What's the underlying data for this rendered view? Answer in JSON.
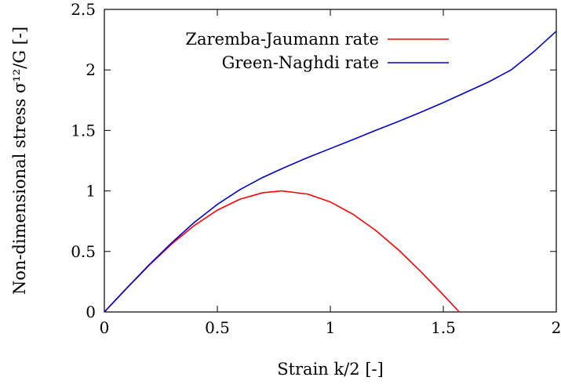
{
  "chart_data": {
    "type": "line",
    "title": "",
    "xlabel": "Strain k/2 [-]",
    "ylabel": "Non-dimensional stress σ¹²/G [-]",
    "xlim": [
      0,
      2
    ],
    "ylim": [
      0,
      2.5
    ],
    "x_ticks": [
      "0",
      "0.5",
      "1",
      "1.5",
      "2"
    ],
    "y_ticks": [
      "0",
      "0.5",
      "1",
      "1.5",
      "2",
      "2.5"
    ],
    "x_tick_values": [
      0,
      0.5,
      1,
      1.5,
      2
    ],
    "y_tick_values": [
      0,
      0.5,
      1,
      1.5,
      2,
      2.5
    ],
    "grid": false,
    "legend_position": "top-right",
    "series": [
      {
        "name": "Zaremba-Jaumann rate",
        "color": "#ff0000",
        "x": [
          0,
          0.1,
          0.2,
          0.3,
          0.4,
          0.5,
          0.6,
          0.7,
          0.785,
          0.9,
          1.0,
          1.1,
          1.2,
          1.3,
          1.4,
          1.5,
          1.571
        ],
        "y": [
          0,
          0.198,
          0.389,
          0.565,
          0.717,
          0.841,
          0.932,
          0.985,
          1.0,
          0.974,
          0.909,
          0.808,
          0.675,
          0.516,
          0.335,
          0.141,
          0
        ]
      },
      {
        "name": "Green-Naghdi rate",
        "color": "#0000cc",
        "x": [
          0,
          0.1,
          0.2,
          0.3,
          0.4,
          0.5,
          0.6,
          0.7,
          0.8,
          0.9,
          1.0,
          1.1,
          1.2,
          1.3,
          1.4,
          1.5,
          1.6,
          1.7,
          1.8,
          1.9,
          2.0
        ],
        "y": [
          0,
          0.199,
          0.393,
          0.575,
          0.743,
          0.889,
          1.011,
          1.111,
          1.196,
          1.276,
          1.35,
          1.424,
          1.5,
          1.573,
          1.65,
          1.73,
          1.815,
          1.9,
          2.0,
          2.15,
          2.32
        ]
      }
    ]
  }
}
